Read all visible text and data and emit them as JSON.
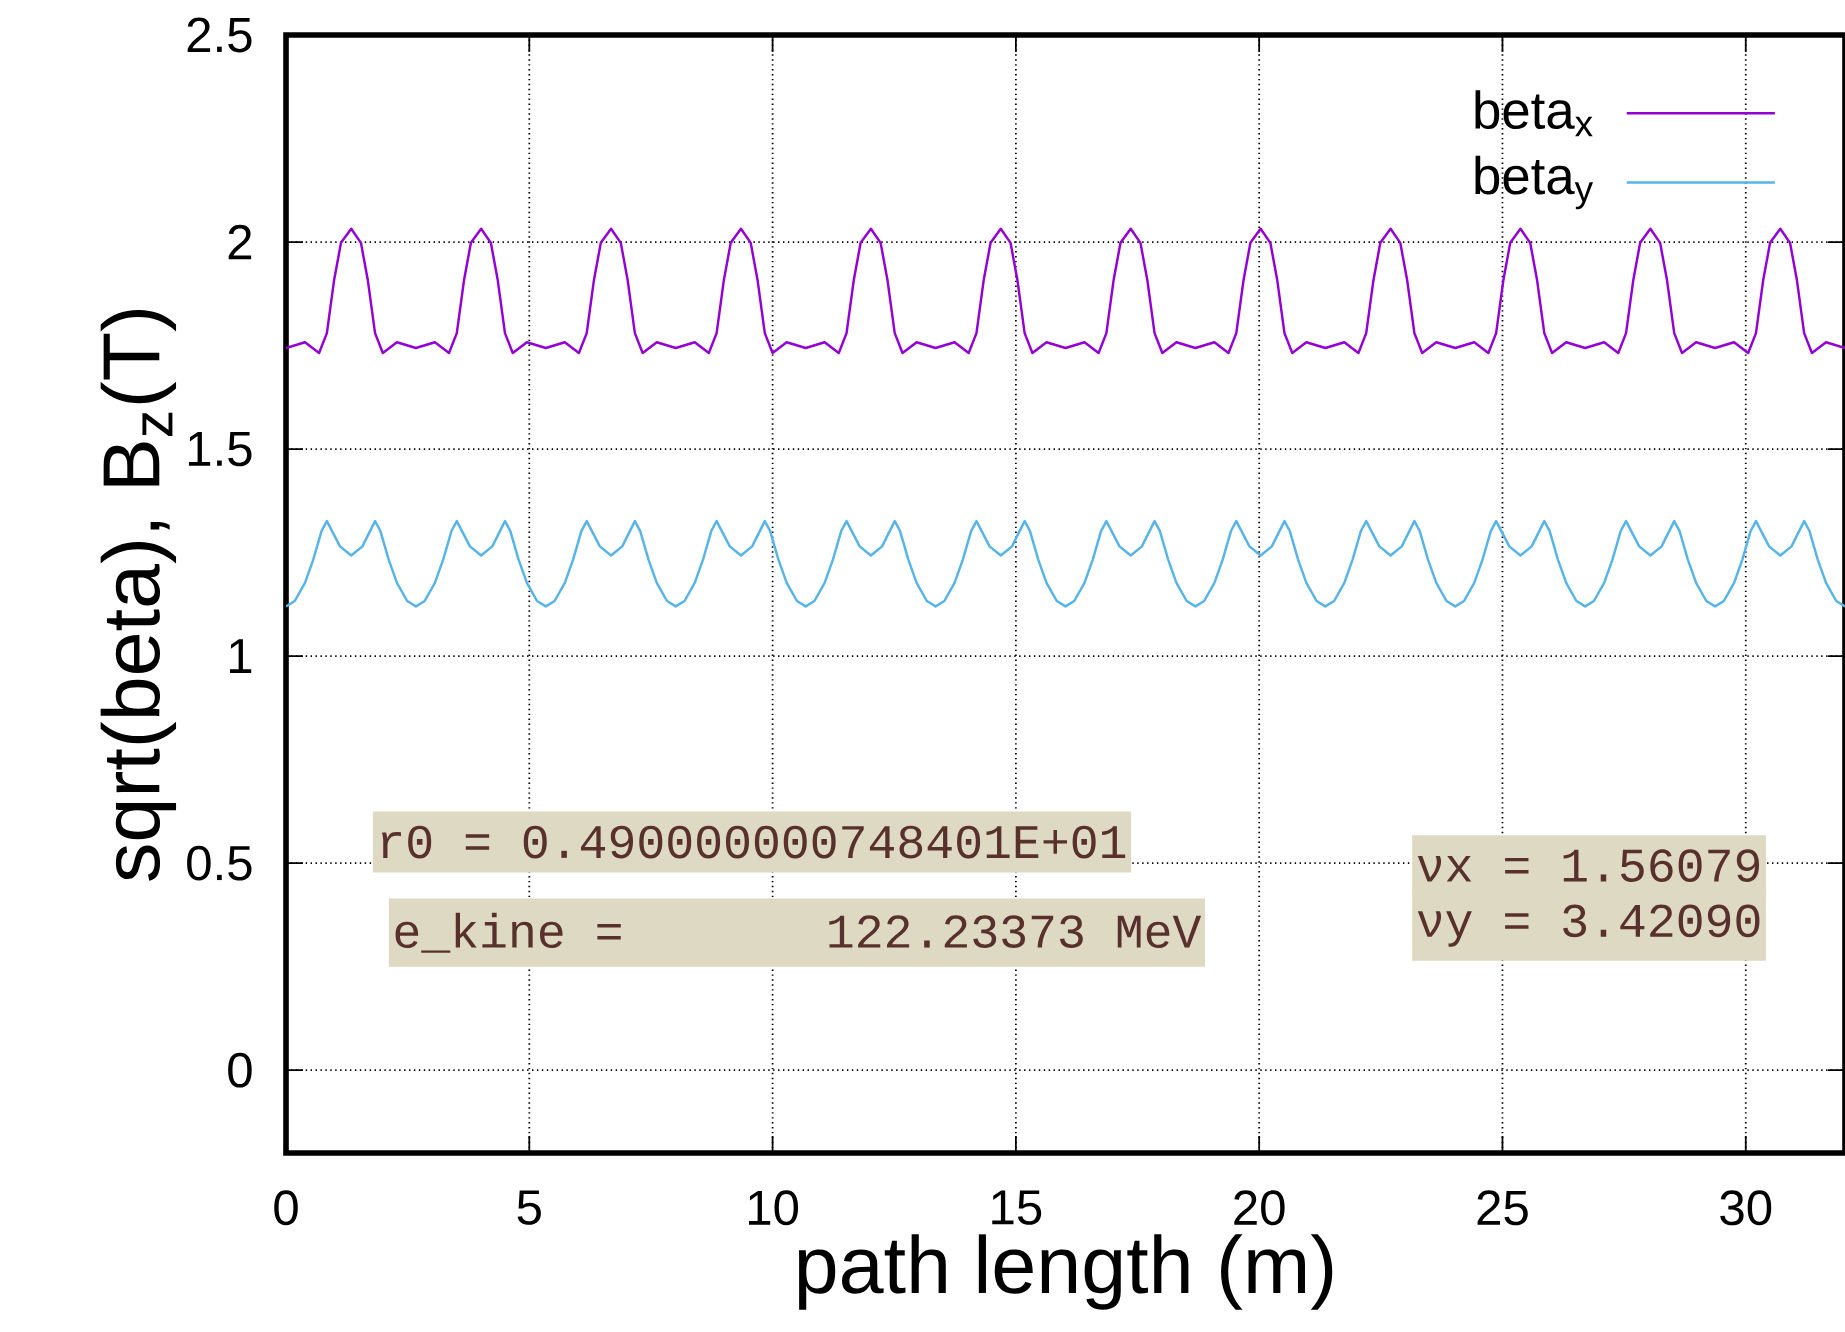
{
  "chart_data": {
    "type": "line",
    "xlabel": "path length (m)",
    "ylabel": "sqrt(beta), B$_{z}$(T)",
    "xlim": [
      0,
      32.04
    ],
    "ylim": [
      -0.2,
      2.5
    ],
    "xticks": [
      0,
      5,
      10,
      15,
      20,
      25,
      30
    ],
    "yticks": [
      0,
      0.5,
      1,
      1.5,
      2,
      2.5
    ],
    "grid": true,
    "legend": "top right",
    "marker": "none",
    "line_style": "solid",
    "annotations": [
      "r0 = 0.490000000748401E+01",
      "e_kine =       122.23373 MeV",
      "νx = 1.56079",
      "νy = 3.42090"
    ],
    "series": [
      {
        "name": "beta$_{x}$",
        "color": "#9400d3",
        "x": [
          0,
          0.39,
          0.68,
          0.84,
          0.99,
          1.13,
          1.34,
          1.54,
          1.68,
          1.83,
          1.99,
          2.28,
          2.67,
          3.06,
          3.35,
          3.51,
          3.66,
          3.8,
          4.01,
          4.21,
          4.35,
          4.5,
          4.66,
          4.95,
          5.34,
          5.73,
          6.02,
          6.18,
          6.33,
          6.47,
          6.68,
          6.88,
          7.02,
          7.17,
          7.33,
          7.62,
          8.01,
          8.4,
          8.69,
          8.85,
          9.0,
          9.14,
          9.35,
          9.55,
          9.69,
          9.84,
          10.0,
          10.29,
          10.68,
          11.07,
          11.36,
          11.52,
          11.67,
          11.81,
          12.02,
          12.22,
          12.36,
          12.51,
          12.67,
          12.96,
          13.35,
          13.74,
          14.03,
          14.19,
          14.34,
          14.48,
          14.69,
          14.89,
          15.03,
          15.18,
          15.34,
          15.63,
          16.02,
          16.41,
          16.7,
          16.86,
          17.01,
          17.15,
          17.36,
          17.56,
          17.7,
          17.85,
          18.01,
          18.3,
          18.69,
          19.08,
          19.37,
          19.53,
          19.68,
          19.82,
          20.03,
          20.23,
          20.37,
          20.52,
          20.68,
          20.97,
          21.36,
          21.75,
          22.04,
          22.2,
          22.35,
          22.49,
          22.7,
          22.9,
          23.04,
          23.19,
          23.35,
          23.64,
          24.03,
          24.42,
          24.71,
          24.87,
          25.02,
          25.16,
          25.37,
          25.57,
          25.71,
          25.86,
          26.02,
          26.31,
          26.7,
          27.09,
          27.38,
          27.54,
          27.69,
          27.83,
          28.04,
          28.24,
          28.38,
          28.53,
          28.69,
          28.98,
          29.37,
          29.76,
          30.05,
          30.21,
          30.36,
          30.5,
          30.71,
          30.91,
          31.05,
          31.2,
          31.36,
          31.65,
          32.04
        ],
        "values": [
          1.744,
          1.758,
          1.732,
          1.78,
          1.909,
          1.998,
          2.032,
          1.998,
          1.909,
          1.78,
          1.732,
          1.758,
          1.744,
          1.758,
          1.732,
          1.78,
          1.909,
          1.998,
          2.032,
          1.998,
          1.909,
          1.78,
          1.732,
          1.758,
          1.744,
          1.758,
          1.732,
          1.78,
          1.909,
          1.998,
          2.032,
          1.998,
          1.909,
          1.78,
          1.732,
          1.758,
          1.744,
          1.758,
          1.732,
          1.78,
          1.909,
          1.998,
          2.032,
          1.998,
          1.909,
          1.78,
          1.732,
          1.758,
          1.744,
          1.758,
          1.732,
          1.78,
          1.909,
          1.998,
          2.032,
          1.998,
          1.909,
          1.78,
          1.732,
          1.758,
          1.744,
          1.758,
          1.732,
          1.78,
          1.909,
          1.998,
          2.032,
          1.998,
          1.909,
          1.78,
          1.732,
          1.758,
          1.744,
          1.758,
          1.732,
          1.78,
          1.909,
          1.998,
          2.032,
          1.998,
          1.909,
          1.78,
          1.732,
          1.758,
          1.744,
          1.758,
          1.732,
          1.78,
          1.909,
          1.998,
          2.032,
          1.998,
          1.909,
          1.78,
          1.732,
          1.758,
          1.744,
          1.758,
          1.732,
          1.78,
          1.909,
          1.998,
          2.032,
          1.998,
          1.909,
          1.78,
          1.732,
          1.758,
          1.744,
          1.758,
          1.732,
          1.78,
          1.909,
          1.998,
          2.032,
          1.998,
          1.909,
          1.78,
          1.732,
          1.758,
          1.744,
          1.758,
          1.732,
          1.78,
          1.909,
          1.998,
          2.032,
          1.998,
          1.909,
          1.78,
          1.732,
          1.758,
          1.744,
          1.758,
          1.732,
          1.78,
          1.909,
          1.998,
          2.032,
          1.998,
          1.909,
          1.78,
          1.732,
          1.758,
          1.744
        ]
      },
      {
        "name": "beta$_{y}$",
        "color": "#56b4e9",
        "x": [
          0,
          0.18,
          0.39,
          0.56,
          0.73,
          0.84,
          1.11,
          1.34,
          1.57,
          1.83,
          1.94,
          2.11,
          2.28,
          2.49,
          2.67,
          2.85,
          3.06,
          3.23,
          3.4,
          3.51,
          3.78,
          4.01,
          4.24,
          4.5,
          4.61,
          4.78,
          4.95,
          5.16,
          5.34,
          5.52,
          5.73,
          5.9,
          6.07,
          6.18,
          6.45,
          6.68,
          6.91,
          7.17,
          7.28,
          7.45,
          7.62,
          7.83,
          8.01,
          8.19,
          8.4,
          8.57,
          8.74,
          8.85,
          9.12,
          9.35,
          9.58,
          9.84,
          9.95,
          10.12,
          10.29,
          10.5,
          10.68,
          10.86,
          11.07,
          11.24,
          11.41,
          11.52,
          11.79,
          12.02,
          12.25,
          12.51,
          12.62,
          12.79,
          12.96,
          13.17,
          13.35,
          13.53,
          13.74,
          13.91,
          14.08,
          14.19,
          14.46,
          14.69,
          14.92,
          15.18,
          15.29,
          15.46,
          15.63,
          15.84,
          16.02,
          16.2,
          16.41,
          16.58,
          16.75,
          16.86,
          17.13,
          17.36,
          17.59,
          17.85,
          17.96,
          18.13,
          18.3,
          18.51,
          18.69,
          18.87,
          19.08,
          19.25,
          19.42,
          19.53,
          19.8,
          20.03,
          20.26,
          20.52,
          20.63,
          20.8,
          20.97,
          21.18,
          21.36,
          21.54,
          21.75,
          21.92,
          22.09,
          22.2,
          22.47,
          22.7,
          22.93,
          23.19,
          23.3,
          23.47,
          23.64,
          23.85,
          24.03,
          24.21,
          24.42,
          24.59,
          24.76,
          24.87,
          25.14,
          25.37,
          25.6,
          25.86,
          25.97,
          26.14,
          26.31,
          26.52,
          26.7,
          26.88,
          27.09,
          27.26,
          27.43,
          27.54,
          27.81,
          28.04,
          28.27,
          28.53,
          28.64,
          28.81,
          28.98,
          29.19,
          29.37,
          29.55,
          29.76,
          29.93,
          30.1,
          30.21,
          30.48,
          30.71,
          30.94,
          31.2,
          31.31,
          31.48,
          31.65,
          31.86,
          32.04
        ],
        "values": [
          1.12,
          1.133,
          1.177,
          1.233,
          1.302,
          1.326,
          1.265,
          1.243,
          1.265,
          1.326,
          1.302,
          1.233,
          1.177,
          1.133,
          1.12,
          1.133,
          1.177,
          1.233,
          1.302,
          1.326,
          1.265,
          1.243,
          1.265,
          1.326,
          1.302,
          1.233,
          1.177,
          1.133,
          1.12,
          1.133,
          1.177,
          1.233,
          1.302,
          1.326,
          1.265,
          1.243,
          1.265,
          1.326,
          1.302,
          1.233,
          1.177,
          1.133,
          1.12,
          1.133,
          1.177,
          1.233,
          1.302,
          1.326,
          1.265,
          1.243,
          1.265,
          1.326,
          1.302,
          1.233,
          1.177,
          1.133,
          1.12,
          1.133,
          1.177,
          1.233,
          1.302,
          1.326,
          1.265,
          1.243,
          1.265,
          1.326,
          1.302,
          1.233,
          1.177,
          1.133,
          1.12,
          1.133,
          1.177,
          1.233,
          1.302,
          1.326,
          1.265,
          1.243,
          1.265,
          1.326,
          1.302,
          1.233,
          1.177,
          1.133,
          1.12,
          1.133,
          1.177,
          1.233,
          1.302,
          1.326,
          1.265,
          1.243,
          1.265,
          1.326,
          1.302,
          1.233,
          1.177,
          1.133,
          1.12,
          1.133,
          1.177,
          1.233,
          1.302,
          1.326,
          1.265,
          1.243,
          1.265,
          1.326,
          1.302,
          1.233,
          1.177,
          1.133,
          1.12,
          1.133,
          1.177,
          1.233,
          1.302,
          1.326,
          1.265,
          1.243,
          1.265,
          1.326,
          1.302,
          1.233,
          1.177,
          1.133,
          1.12,
          1.133,
          1.177,
          1.233,
          1.302,
          1.326,
          1.265,
          1.243,
          1.265,
          1.326,
          1.302,
          1.233,
          1.177,
          1.133,
          1.12,
          1.133,
          1.177,
          1.233,
          1.302,
          1.326,
          1.265,
          1.243,
          1.265,
          1.326,
          1.302,
          1.233,
          1.177,
          1.133,
          1.12,
          1.133,
          1.177,
          1.233,
          1.302,
          1.326,
          1.265,
          1.243,
          1.265,
          1.326,
          1.302,
          1.233,
          1.177,
          1.133,
          1.12
        ]
      }
    ]
  }
}
